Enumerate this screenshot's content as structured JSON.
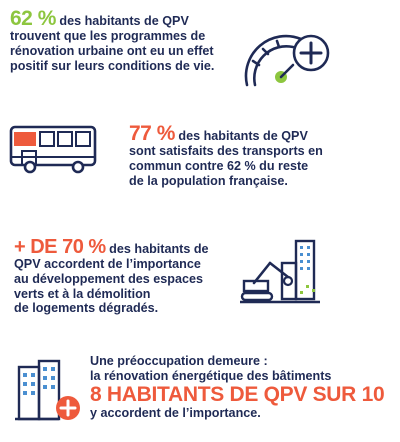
{
  "stat1": {
    "value": "62 %",
    "text_line1": " des habitants de QPV",
    "text_line2": "trouvent que les programmes de",
    "text_line3": "rénovation urbaine ont eu un effet",
    "text_line4": "positif sur leurs conditions de vie."
  },
  "stat2": {
    "value": "77 %",
    "text_line1": " des habitants de QPV",
    "text_line2": "sont satisfaits des transports en",
    "text_line3": "commun contre 62 % du reste",
    "text_line4": "de la population française."
  },
  "stat3": {
    "value": "+ DE 70 %",
    "text_line1": " des habitants de",
    "text_line2": "QPV accordent de l’importance",
    "text_line3": "au développement des espaces",
    "text_line4": "verts et à la démolition",
    "text_line5": "de logements dégradés."
  },
  "stat4": {
    "line1": "Une préoccupation demeure :",
    "line2": "la rénovation énergétique des bâtiments",
    "highlight": "8 HABITANTS DE QPV SUR 10",
    "line3": "y accordent de l’importance."
  },
  "icons": [
    "gauge-plus-icon",
    "bus-icon",
    "demolition-excavator-icon",
    "buildings-plus-icon"
  ],
  "colors": {
    "navy": "#1f2a55",
    "green": "#8dc63f",
    "orange": "#ee5a3c",
    "blue": "#4a8fd1"
  }
}
